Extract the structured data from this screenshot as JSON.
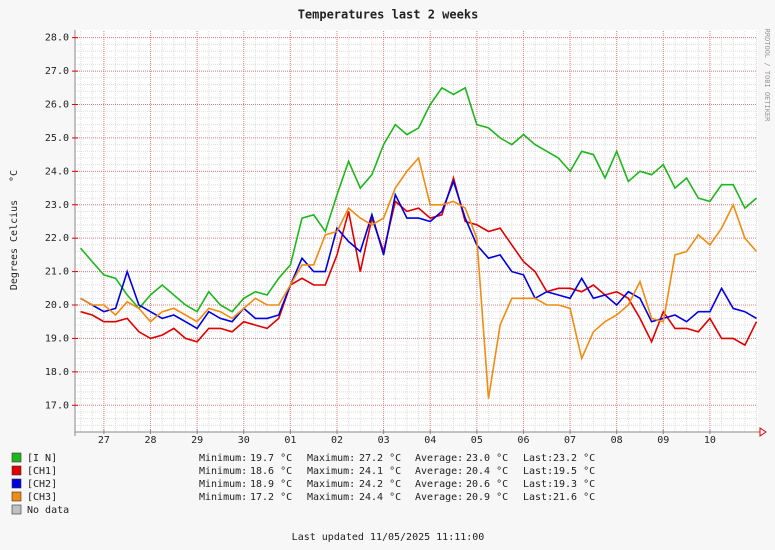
{
  "chart_data": {
    "type": "line",
    "title": "Temperatures last 2 weeks",
    "y_label": "Degrees Celcius",
    "y_unit": "°C",
    "watermark": "RRDTOOL / TOBI OETIKER",
    "footer": "Last updated 11/05/2025 11:11:00",
    "xlim": [
      -0.12,
      14.51
    ],
    "xticks": [
      {
        "value": 0.5,
        "label": "27"
      },
      {
        "value": 1.5,
        "label": "28"
      },
      {
        "value": 2.5,
        "label": "29"
      },
      {
        "value": 3.5,
        "label": "30"
      },
      {
        "value": 4.5,
        "label": "01"
      },
      {
        "value": 5.5,
        "label": "02"
      },
      {
        "value": 6.5,
        "label": "03"
      },
      {
        "value": 7.5,
        "label": "04"
      },
      {
        "value": 8.5,
        "label": "05"
      },
      {
        "value": 9.5,
        "label": "06"
      },
      {
        "value": 10.5,
        "label": "07"
      },
      {
        "value": 11.5,
        "label": "08"
      },
      {
        "value": 12.5,
        "label": "09"
      },
      {
        "value": 13.5,
        "label": "10"
      }
    ],
    "ylim": [
      16.2,
      28.2
    ],
    "yticks": [
      {
        "value": 17,
        "label": "17.0"
      },
      {
        "value": 18,
        "label": "18.0"
      },
      {
        "value": 19,
        "label": "19.0"
      },
      {
        "value": 20,
        "label": "20.0"
      },
      {
        "value": 21,
        "label": "21.0"
      },
      {
        "value": 22,
        "label": "22.0"
      },
      {
        "value": 23,
        "label": "23.0"
      },
      {
        "value": 24,
        "label": "24.0"
      },
      {
        "value": 25,
        "label": "25.0"
      },
      {
        "value": 26,
        "label": "26.0"
      },
      {
        "value": 27,
        "label": "27.0"
      },
      {
        "value": 28,
        "label": "28.0"
      }
    ],
    "grid": true,
    "x": [
      0,
      0.25,
      0.5,
      0.75,
      1,
      1.25,
      1.5,
      1.75,
      2,
      2.25,
      2.5,
      2.75,
      3,
      3.25,
      3.5,
      3.75,
      4,
      4.25,
      4.5,
      4.75,
      5,
      5.25,
      5.5,
      5.75,
      6,
      6.25,
      6.5,
      6.75,
      7,
      7.25,
      7.5,
      7.75,
      8,
      8.25,
      8.5,
      8.75,
      9,
      9.25,
      9.5,
      9.75,
      10,
      10.25,
      10.5,
      10.75,
      11,
      11.25,
      11.5,
      11.75,
      12,
      12.25,
      12.5,
      12.75,
      13,
      13.25,
      13.5,
      13.75,
      14,
      14.25,
      14.5
    ],
    "series": [
      {
        "name": "[I N]",
        "color": "#1db71d",
        "values": [
          21.7,
          21.3,
          20.9,
          20.8,
          20.3,
          19.9,
          20.3,
          20.6,
          20.3,
          20.0,
          19.8,
          20.4,
          20.0,
          19.8,
          20.2,
          20.4,
          20.3,
          20.8,
          21.2,
          22.6,
          22.7,
          22.2,
          23.3,
          24.3,
          23.5,
          23.9,
          24.8,
          25.4,
          25.1,
          25.3,
          26.0,
          26.5,
          26.3,
          26.5,
          25.4,
          25.3,
          25.0,
          24.8,
          25.1,
          24.8,
          24.6,
          24.4,
          24.0,
          24.6,
          24.5,
          23.8,
          24.6,
          23.7,
          24.0,
          23.9,
          24.2,
          23.5,
          23.8,
          23.2,
          23.1,
          23.6,
          23.6,
          22.9,
          23.2
        ]
      },
      {
        "name": "[CH1]",
        "color": "#e00000",
        "values": [
          19.8,
          19.7,
          19.5,
          19.5,
          19.6,
          19.2,
          19.0,
          19.1,
          19.3,
          19.0,
          18.9,
          19.3,
          19.3,
          19.2,
          19.5,
          19.4,
          19.3,
          19.6,
          20.6,
          20.8,
          20.6,
          20.6,
          21.5,
          22.8,
          21.0,
          22.6,
          21.6,
          23.1,
          22.8,
          22.9,
          22.6,
          22.7,
          23.8,
          22.5,
          22.4,
          22.2,
          22.3,
          21.8,
          21.3,
          21.0,
          20.4,
          20.5,
          20.5,
          20.4,
          20.6,
          20.3,
          20.4,
          20.2,
          19.6,
          18.9,
          19.8,
          19.3,
          19.3,
          19.2,
          19.6,
          19.0,
          19.0,
          18.8,
          19.5
        ]
      },
      {
        "name": "[CH2]",
        "color": "#0000e0",
        "values": [
          20.2,
          20.0,
          19.8,
          19.9,
          21.0,
          20.0,
          19.8,
          19.6,
          19.7,
          19.5,
          19.3,
          19.8,
          19.6,
          19.5,
          19.9,
          19.6,
          19.6,
          19.7,
          20.6,
          21.4,
          21.0,
          21.0,
          22.3,
          21.9,
          21.6,
          22.7,
          21.5,
          23.3,
          22.6,
          22.6,
          22.5,
          22.8,
          23.7,
          22.6,
          21.8,
          21.4,
          21.5,
          21.0,
          20.9,
          20.2,
          20.4,
          20.3,
          20.2,
          20.8,
          20.2,
          20.3,
          20.0,
          20.4,
          20.2,
          19.5,
          19.6,
          19.7,
          19.5,
          19.8,
          19.8,
          20.5,
          19.9,
          19.8,
          19.6
        ]
      },
      {
        "name": "[CH3]",
        "color": "#f08c10",
        "values": [
          20.2,
          20.0,
          20.0,
          19.7,
          20.1,
          19.9,
          19.5,
          19.8,
          19.9,
          19.7,
          19.5,
          19.9,
          19.8,
          19.6,
          19.9,
          20.2,
          20.0,
          20.0,
          20.6,
          21.2,
          21.2,
          22.1,
          22.2,
          22.9,
          22.6,
          22.4,
          22.6,
          23.5,
          24.0,
          24.4,
          23.0,
          23.0,
          23.1,
          22.9,
          22.0,
          17.2,
          19.4,
          20.2,
          20.2,
          20.2,
          20.0,
          20.0,
          19.9,
          18.4,
          19.2,
          19.5,
          19.7,
          20.0,
          20.7,
          19.6,
          19.5,
          21.5,
          21.6,
          22.1,
          21.8,
          22.3,
          23.0,
          22.0,
          21.6
        ]
      }
    ],
    "no_data_label": "No data",
    "stat_labels": [
      "Minimum:",
      "Maximum:",
      "Average:",
      "Last:"
    ],
    "stats": [
      [
        "19.7 °C",
        "27.2 °C",
        "23.0 °C",
        "23.2 °C"
      ],
      [
        "18.6 °C",
        "24.1 °C",
        "20.4 °C",
        "19.5 °C"
      ],
      [
        "18.9 °C",
        "24.2 °C",
        "20.6 °C",
        "19.3 °C"
      ],
      [
        "17.2 °C",
        "24.4 °C",
        "20.9 °C",
        "21.6 °C"
      ]
    ]
  }
}
